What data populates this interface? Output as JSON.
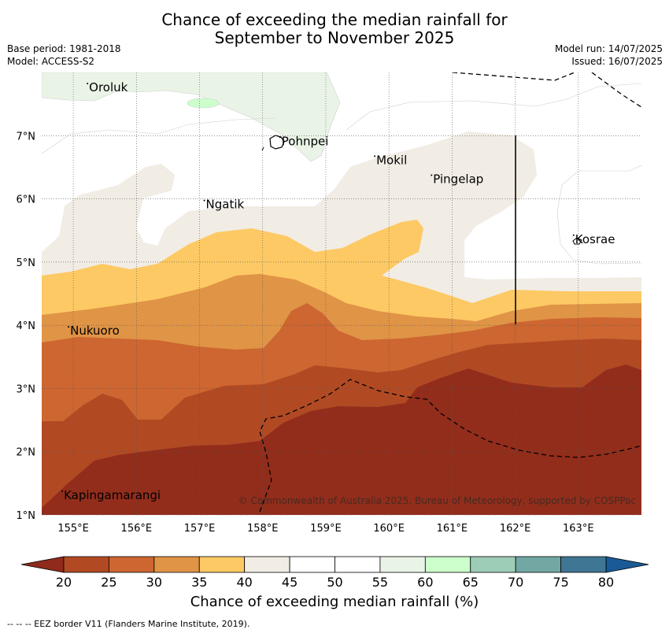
{
  "title": {
    "line1": "Chance of exceeding the median rainfall for",
    "line2": "September to November 2025"
  },
  "meta_left": {
    "base_period": "Base period: 1981-2018",
    "model": "Model: ACCESS-S2"
  },
  "meta_right": {
    "model_run": "Model run: 14/07/2025",
    "issued": "Issued: 16/07/2025"
  },
  "map": {
    "lon_range": [
      154.5,
      164.0
    ],
    "lat_range": [
      1.0,
      8.0
    ],
    "lat_ticks": [
      "1°N",
      "2°N",
      "3°N",
      "4°N",
      "5°N",
      "6°N",
      "7°N"
    ],
    "lon_ticks": [
      "155°E",
      "156°E",
      "157°E",
      "158°E",
      "159°E",
      "160°E",
      "161°E",
      "162°E",
      "163°E"
    ],
    "grid": true,
    "places": [
      {
        "name": "Oroluk",
        "lon": 155.25,
        "lat": 7.7
      },
      {
        "name": "Pohnpei",
        "lon": 158.3,
        "lat": 6.85
      },
      {
        "name": "Mokil",
        "lon": 159.8,
        "lat": 6.55
      },
      {
        "name": "Pingelap",
        "lon": 160.7,
        "lat": 6.25
      },
      {
        "name": "Ngatik",
        "lon": 157.1,
        "lat": 5.85
      },
      {
        "name": "Kosrae",
        "lon": 162.95,
        "lat": 5.3
      },
      {
        "name": "Nukuoro",
        "lon": 154.95,
        "lat": 3.85
      },
      {
        "name": "Kapingamarangi",
        "lon": 154.85,
        "lat": 1.25
      }
    ],
    "copyright": "© Commonwealth of Australia 2025, Bureau of Meteorology, supported by COSPPac"
  },
  "colorbar": {
    "ticks": [
      "20",
      "25",
      "30",
      "35",
      "40",
      "45",
      "50",
      "55",
      "60",
      "65",
      "70",
      "75",
      "80"
    ],
    "colors": [
      "#b14a23",
      "#cd6631",
      "#e09446",
      "#fdc964",
      "#f1ece4",
      "#ffffff",
      "#ffffff",
      "#e9f4e6",
      "#ccffcc",
      "#9dcdb6",
      "#72a7a4",
      "#3f7694"
    ],
    "extend_low": "#8f2a1c",
    "extend_high": "#1a5a96",
    "label": "Chance of exceeding median rainfall (%)"
  },
  "footnote": "--  --  -- EEZ border V11 (Flanders Marine Institute, 2019)."
}
